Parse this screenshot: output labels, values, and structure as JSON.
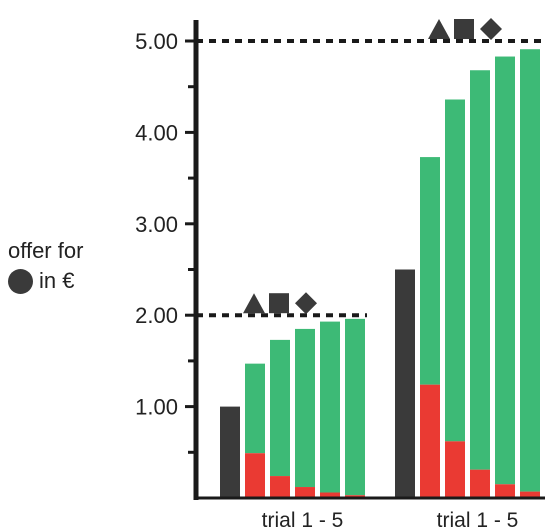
{
  "y_label": {
    "line1": "offer for",
    "line2": "in €",
    "symbol_icon": "filled-circle-icon"
  },
  "colors": {
    "baseline_bar": "#3a3a3a",
    "green": "#3dba76",
    "red": "#ea3a33",
    "axis": "#1a1a1a"
  },
  "chart_data": {
    "type": "bar",
    "title": "",
    "ylabel": "offer for ● in €",
    "ylim": [
      0,
      5.0
    ],
    "yticks": [
      "1.00",
      "2.00",
      "3.00",
      "4.00",
      "5.00"
    ],
    "stacked": true,
    "groups": [
      {
        "label": "trial 1 - 5",
        "reference_line": 2.0,
        "reference_symbols": [
          "triangle-icon",
          "square-icon",
          "diamond-icon"
        ],
        "baseline": 1.0,
        "trials": [
          {
            "trial": 1,
            "red": 0.49,
            "green": 0.98
          },
          {
            "trial": 2,
            "red": 0.24,
            "green": 1.49
          },
          {
            "trial": 3,
            "red": 0.12,
            "green": 1.73
          },
          {
            "trial": 4,
            "red": 0.06,
            "green": 1.87
          },
          {
            "trial": 5,
            "red": 0.03,
            "green": 1.93
          }
        ]
      },
      {
        "label": "trial 1 - 5",
        "reference_line": 5.0,
        "reference_symbols": [
          "triangle-icon",
          "square-icon",
          "diamond-icon"
        ],
        "baseline": 2.5,
        "trials": [
          {
            "trial": 1,
            "red": 1.24,
            "green": 2.49
          },
          {
            "trial": 2,
            "red": 0.62,
            "green": 3.74
          },
          {
            "trial": 3,
            "red": 0.31,
            "green": 4.37
          },
          {
            "trial": 4,
            "red": 0.15,
            "green": 4.68
          },
          {
            "trial": 5,
            "red": 0.07,
            "green": 4.84
          }
        ]
      }
    ]
  }
}
